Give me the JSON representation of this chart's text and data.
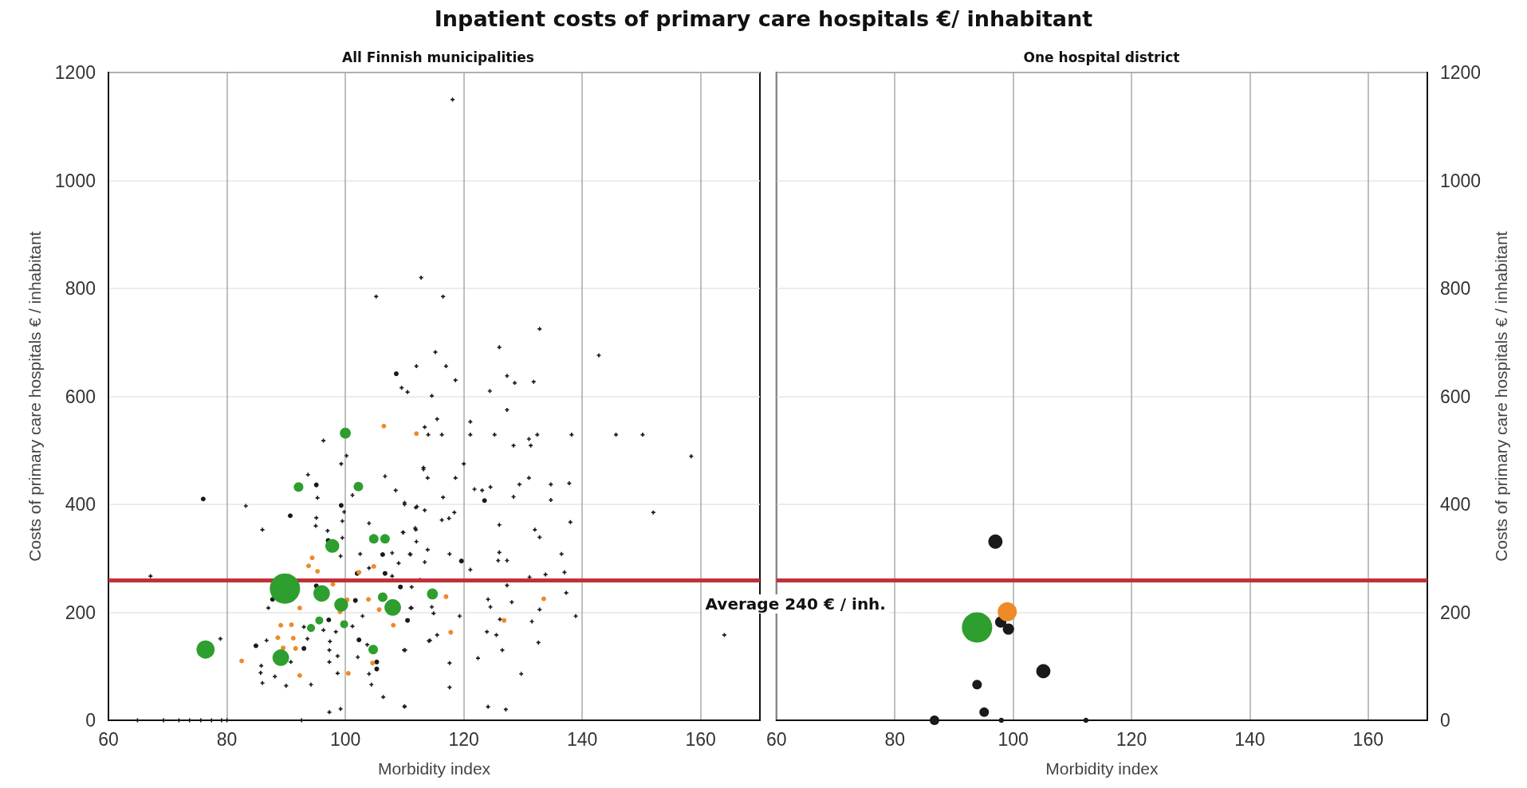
{
  "chart_data": [
    {
      "type": "bubble",
      "title": "Inpatient costs of primary care hospitals €/ inhabitant",
      "subtitle": "All Finnish municipalities",
      "xlabel": "Morbidity index",
      "ylabel": "Costs of primary care hospitals € / inhabitant",
      "xlim": [
        60,
        170
      ],
      "xticks": [
        60,
        80,
        100,
        120,
        140,
        160
      ],
      "ylim": [
        0,
        1200
      ],
      "yticks": [
        0,
        200,
        400,
        600,
        800,
        1000,
        1200
      ],
      "grid": true,
      "ref_lines": [
        {
          "axis": "y",
          "value": 260,
          "color": "#c0303a"
        }
      ],
      "series": [
        {
          "type": "scatter",
          "marker": "cross",
          "color": "#1a1a1a",
          "x": [
            112.8,
            105.2,
            116.5,
            115.2,
            112,
            117,
            109.5,
            110.5,
            114.6,
            118.1,
            118.6,
            132.8,
            126,
            127.3,
            128.6,
            131.8,
            124.4,
            142.8,
            127.3,
            121.1,
            115.5,
            113.4,
            114,
            116.3,
            121.1,
            125.2,
            132.4,
            138.2,
            145.7,
            150.2,
            128.4,
            131,
            131.3,
            158.4,
            120,
            113.2,
            113.9,
            118.6,
            121.8,
            123.1,
            124.5,
            131,
            129.4,
            134.7,
            137.8,
            128.4,
            134.7,
            116.5,
            110,
            112.1,
            113.4,
            118.4,
            116.3,
            117.5,
            152,
            126,
            138,
            132,
            132.8,
            109.7,
            111.8,
            112,
            113.9,
            111,
            113.4,
            117.6,
            126,
            125.8,
            127.3,
            136.5,
            121.1,
            131.1,
            133.8,
            137,
            127.3,
            137.3,
            111.2,
            124.1,
            124.5,
            128.1,
            132.8,
            111,
            114.6,
            114.9,
            119.3,
            138.9,
            126.1,
            131.5,
            115.5,
            114.1,
            123.9,
            125.5,
            164,
            132.6,
            126.5,
            109.9,
            122.4,
            117.6,
            129.7,
            117.6,
            110,
            124.1,
            127.1,
            96.3,
            100.2,
            99.3,
            113.2,
            106.7,
            93.7,
            108.5,
            101.2,
            95.3,
            83.2,
            110,
            111.9,
            99.8,
            95.1,
            99.5,
            104,
            95,
            86,
            111.9,
            109.8,
            97,
            99.5,
            107.9,
            110.9,
            102.5,
            99.2,
            109,
            67.1,
            104,
            107.9,
            112.6,
            87,
            111.2,
            102.9,
            96.3,
            98.4,
            93,
            101.2,
            78.9,
            86.7,
            93.6,
            97.4,
            114.3,
            110.1,
            103.7,
            97.3,
            102.1,
            98.7,
            85.8,
            85.7,
            88.1,
            90.8,
            97.3,
            98.7,
            104,
            86,
            90,
            94.2,
            104.4,
            106.4,
            99.2,
            97.3,
            110,
            64.9,
            69.3,
            71.9,
            73.7,
            75.6,
            77.4,
            79.1,
            80,
            92.6
          ],
          "values": [
            820,
            785,
            785,
            682,
            656,
            656,
            616,
            608,
            601,
            1150,
            630,
            725,
            691,
            638,
            625,
            627,
            610,
            676,
            575,
            553,
            558,
            543,
            529,
            529,
            529,
            529,
            529,
            529,
            529,
            529,
            509,
            521,
            509,
            489,
            475,
            465,
            449,
            449,
            428,
            426,
            432,
            449,
            437,
            437,
            439,
            414,
            408,
            413,
            400,
            396,
            389,
            385,
            371,
            374,
            385,
            362,
            367,
            353,
            339,
            348,
            356,
            331,
            316,
            307,
            293,
            308,
            311,
            296,
            296,
            308,
            279,
            265,
            270,
            274,
            250,
            236,
            247,
            224,
            210,
            219,
            205,
            208,
            210,
            198,
            193,
            193,
            187,
            183,
            158,
            147,
            164,
            158,
            158,
            144,
            130,
            130,
            115,
            106,
            86,
            61,
            25,
            25,
            20,
            518,
            490,
            475,
            468,
            452,
            455,
            426,
            417,
            412,
            397,
            403,
            394,
            386,
            375,
            369,
            365,
            360,
            353,
            353,
            348,
            351,
            338,
            310,
            308,
            308,
            304,
            291,
            267,
            282,
            267,
            260,
            208,
            208,
            193,
            167,
            164,
            173,
            174,
            151,
            148,
            151,
            146,
            148,
            130,
            140,
            130,
            117,
            119,
            101,
            88,
            81,
            108,
            108,
            87,
            86,
            69,
            64,
            66,
            66,
            43,
            21,
            15,
            26,
            0,
            0,
            0,
            0,
            0,
            0,
            0,
            0,
            0
          ]
        },
        {
          "type": "scatter",
          "marker": "circle",
          "color": "#1a1a1a",
          "x": [
            108.6,
            76,
            95.1,
            90.7,
            99.3,
            97.1,
            106.3,
            102,
            106.7,
            109.3,
            95.1,
            87.7,
            101.7,
            110.5,
            97.2,
            102.3,
            84.9,
            93,
            105.3,
            105.3,
            123.5,
            119.6
          ],
          "values": [
            642,
            410,
            436,
            379,
            398,
            333,
            307,
            272,
            272,
            247,
            249,
            224,
            222,
            185,
            186,
            149,
            138,
            133,
            108,
            95,
            407,
            295
          ]
        },
        {
          "type": "scatter",
          "marker": "circle",
          "color": "#ee8a2a",
          "x": [
            106.5,
            112,
            94.4,
            93.8,
            95.3,
            97.9,
            102.3,
            104.8,
            100.3,
            92.3,
            103.9,
            105.7,
            99.1,
            108.1,
            89.1,
            90.9,
            88.6,
            91.2,
            89.5,
            91.6,
            82.5,
            104.6,
            100.5,
            92.3,
            117,
            133.5,
            126.8,
            117.8
          ],
          "values": [
            545,
            531,
            301,
            286,
            276,
            252,
            274,
            285,
            223,
            208,
            224,
            205,
            201,
            176,
            176,
            177,
            153,
            152,
            134,
            133,
            110,
            106,
            87,
            83,
            229,
            225,
            185,
            163
          ]
        },
        {
          "color": "#2e9e2e",
          "x": [
            100,
            92.1,
            102.2,
            97.8,
            104.8,
            106.7,
            89.8,
            96,
            99.3,
            106.3,
            108,
            114.7,
            95.6,
            94.2,
            99.8,
            104.7,
            76.4,
            89.1
          ],
          "values": [
            532,
            432,
            433,
            323,
            336,
            336,
            244,
            235,
            214,
            228,
            209,
            234,
            185,
            171,
            178,
            131,
            131,
            116
          ],
          "sizes": [
            0.13,
            0.1,
            0.1,
            0.21,
            0.1,
            0.1,
            1,
            0.3,
            0.21,
            0.1,
            0.3,
            0.13,
            0.07,
            0.07,
            0.07,
            0.1,
            0.36,
            0.3
          ]
        }
      ]
    },
    {
      "type": "bubble",
      "subtitle": "One hospital district",
      "xlabel": "Morbidity index",
      "ylabel": "Costs of primary care hospitals € / inhabitant",
      "xlim": [
        60,
        170
      ],
      "xticks": [
        60,
        80,
        100,
        120,
        140,
        160
      ],
      "ylim": [
        0,
        1200
      ],
      "yticks": [
        0,
        200,
        400,
        600,
        800,
        1000,
        1200
      ],
      "grid": true,
      "ref_lines": [
        {
          "axis": "y",
          "value": 260,
          "color": "#c0303a",
          "label": "Average 240 € / inh."
        }
      ],
      "series": [
        {
          "color": "#1a1a1a",
          "x": [
            97,
            97.9,
            99.2,
            105.1,
            93.9,
            95.1,
            86.7,
            98,
            112.3
          ],
          "values": [
            331,
            182,
            169,
            91,
            66,
            15,
            0,
            0,
            0
          ],
          "sizes": [
            0.22,
            0.14,
            0.14,
            0.22,
            0.1,
            0.1,
            0.1,
            0.03,
            0.03
          ]
        },
        {
          "color": "#ee8a2a",
          "x": [
            99
          ],
          "values": [
            201
          ],
          "sizes": [
            0.4
          ]
        },
        {
          "color": "#2e9e2e",
          "x": [
            93.9
          ],
          "values": [
            172
          ],
          "sizes": [
            1
          ]
        }
      ]
    }
  ]
}
